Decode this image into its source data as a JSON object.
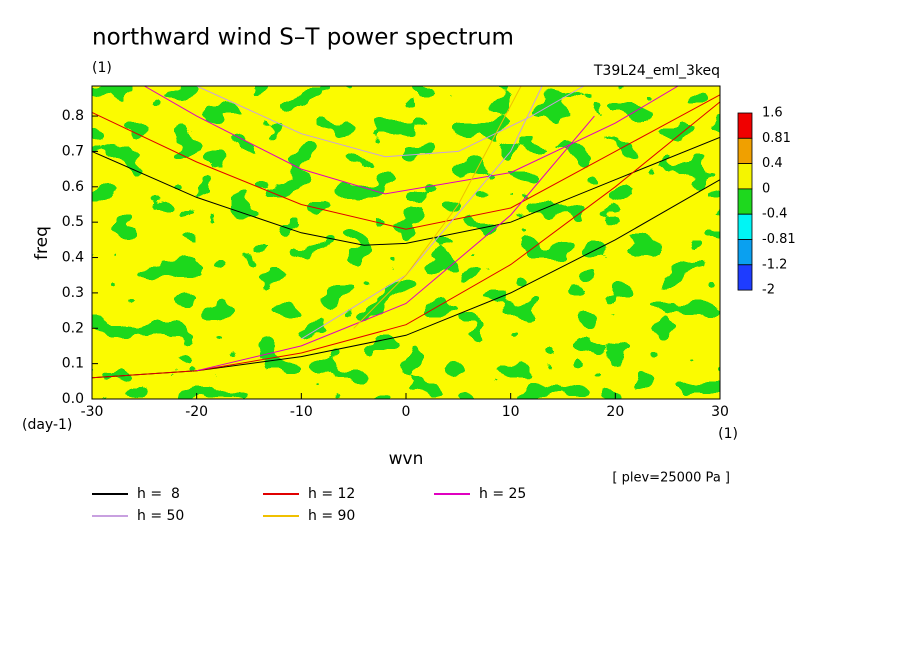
{
  "chart_data": {
    "type": "line",
    "title": "northward wind S–T power spectrum",
    "subtitle": "(1)",
    "run_label": "T39L24_eml_3keq",
    "x_label": "wvn",
    "x_unit": "(1)",
    "y_label": "freq",
    "y_unit": "(day-1)",
    "note": "[ plev=25000 Pa ]",
    "xlim": [
      -30,
      30
    ],
    "xticks": [
      -30,
      -20,
      -10,
      0,
      10,
      20,
      30
    ],
    "ylim": [
      0,
      0.885
    ],
    "yticks": [
      {
        "value": 0,
        "label": "0.0"
      },
      0.1,
      0.2,
      0.3,
      0.4,
      0.5,
      0.6,
      0.7,
      0.8
    ],
    "colorbar": {
      "levels": [
        1.6,
        0.81,
        0.4,
        0,
        -0.4,
        -0.81,
        -1.2,
        -2
      ],
      "colors": [
        "#f00000",
        "#f0a000",
        "#f5f500",
        "#1ed81e",
        "#00f5f5",
        "#0aa0f0",
        "#1e3cff"
      ]
    },
    "series": [
      {
        "name": "h =  8",
        "color": "#000000",
        "lines": [
          {
            "x": [
              -30,
              -20,
              -10,
              -4,
              0,
              10,
              20,
              30
            ],
            "values": [
              0.7,
              0.57,
              0.47,
              0.435,
              0.44,
              0.5,
              0.62,
              0.74
            ]
          },
          {
            "x": [
              -30,
              -20,
              -10,
              0,
              10,
              20,
              30
            ],
            "values": [
              0.06,
              0.08,
              0.12,
              0.18,
              0.3,
              0.45,
              0.62
            ]
          }
        ]
      },
      {
        "name": "h = 12",
        "color": "#e00000",
        "lines": [
          {
            "x": [
              -30,
              -20,
              -10,
              0,
              10,
              20,
              30
            ],
            "values": [
              0.81,
              0.67,
              0.55,
              0.48,
              0.54,
              0.7,
              0.86
            ]
          },
          {
            "x": [
              -30,
              -20,
              -10,
              0,
              10,
              20,
              30
            ],
            "values": [
              0.06,
              0.08,
              0.13,
              0.21,
              0.38,
              0.6,
              0.84
            ]
          }
        ]
      },
      {
        "name": "h = 25",
        "color": "#e000c0",
        "lines": [
          {
            "x": [
              -25,
              -20,
              -10,
              -2,
              10,
              20,
              26
            ],
            "values": [
              0.885,
              0.8,
              0.65,
              0.58,
              0.64,
              0.78,
              0.885
            ]
          },
          {
            "x": [
              -20,
              -10,
              0,
              10,
              18
            ],
            "values": [
              0.08,
              0.15,
              0.27,
              0.52,
              0.8
            ]
          }
        ]
      },
      {
        "name": "h = 50",
        "color": "#c8a0e0",
        "lines": [
          {
            "x": [
              -20,
              -10,
              -2,
              5,
              12,
              17
            ],
            "values": [
              0.885,
              0.75,
              0.685,
              0.7,
              0.8,
              0.885
            ]
          },
          {
            "x": [
              -10,
              0,
              10,
              13
            ],
            "values": [
              0.17,
              0.35,
              0.7,
              0.885
            ]
          }
        ]
      },
      {
        "name": "h = 90",
        "color": "#f0c000",
        "lines": [
          {
            "x": [
              -5,
              0,
              5,
              11
            ],
            "values": [
              0.2,
              0.35,
              0.55,
              0.885
            ]
          }
        ]
      }
    ]
  }
}
